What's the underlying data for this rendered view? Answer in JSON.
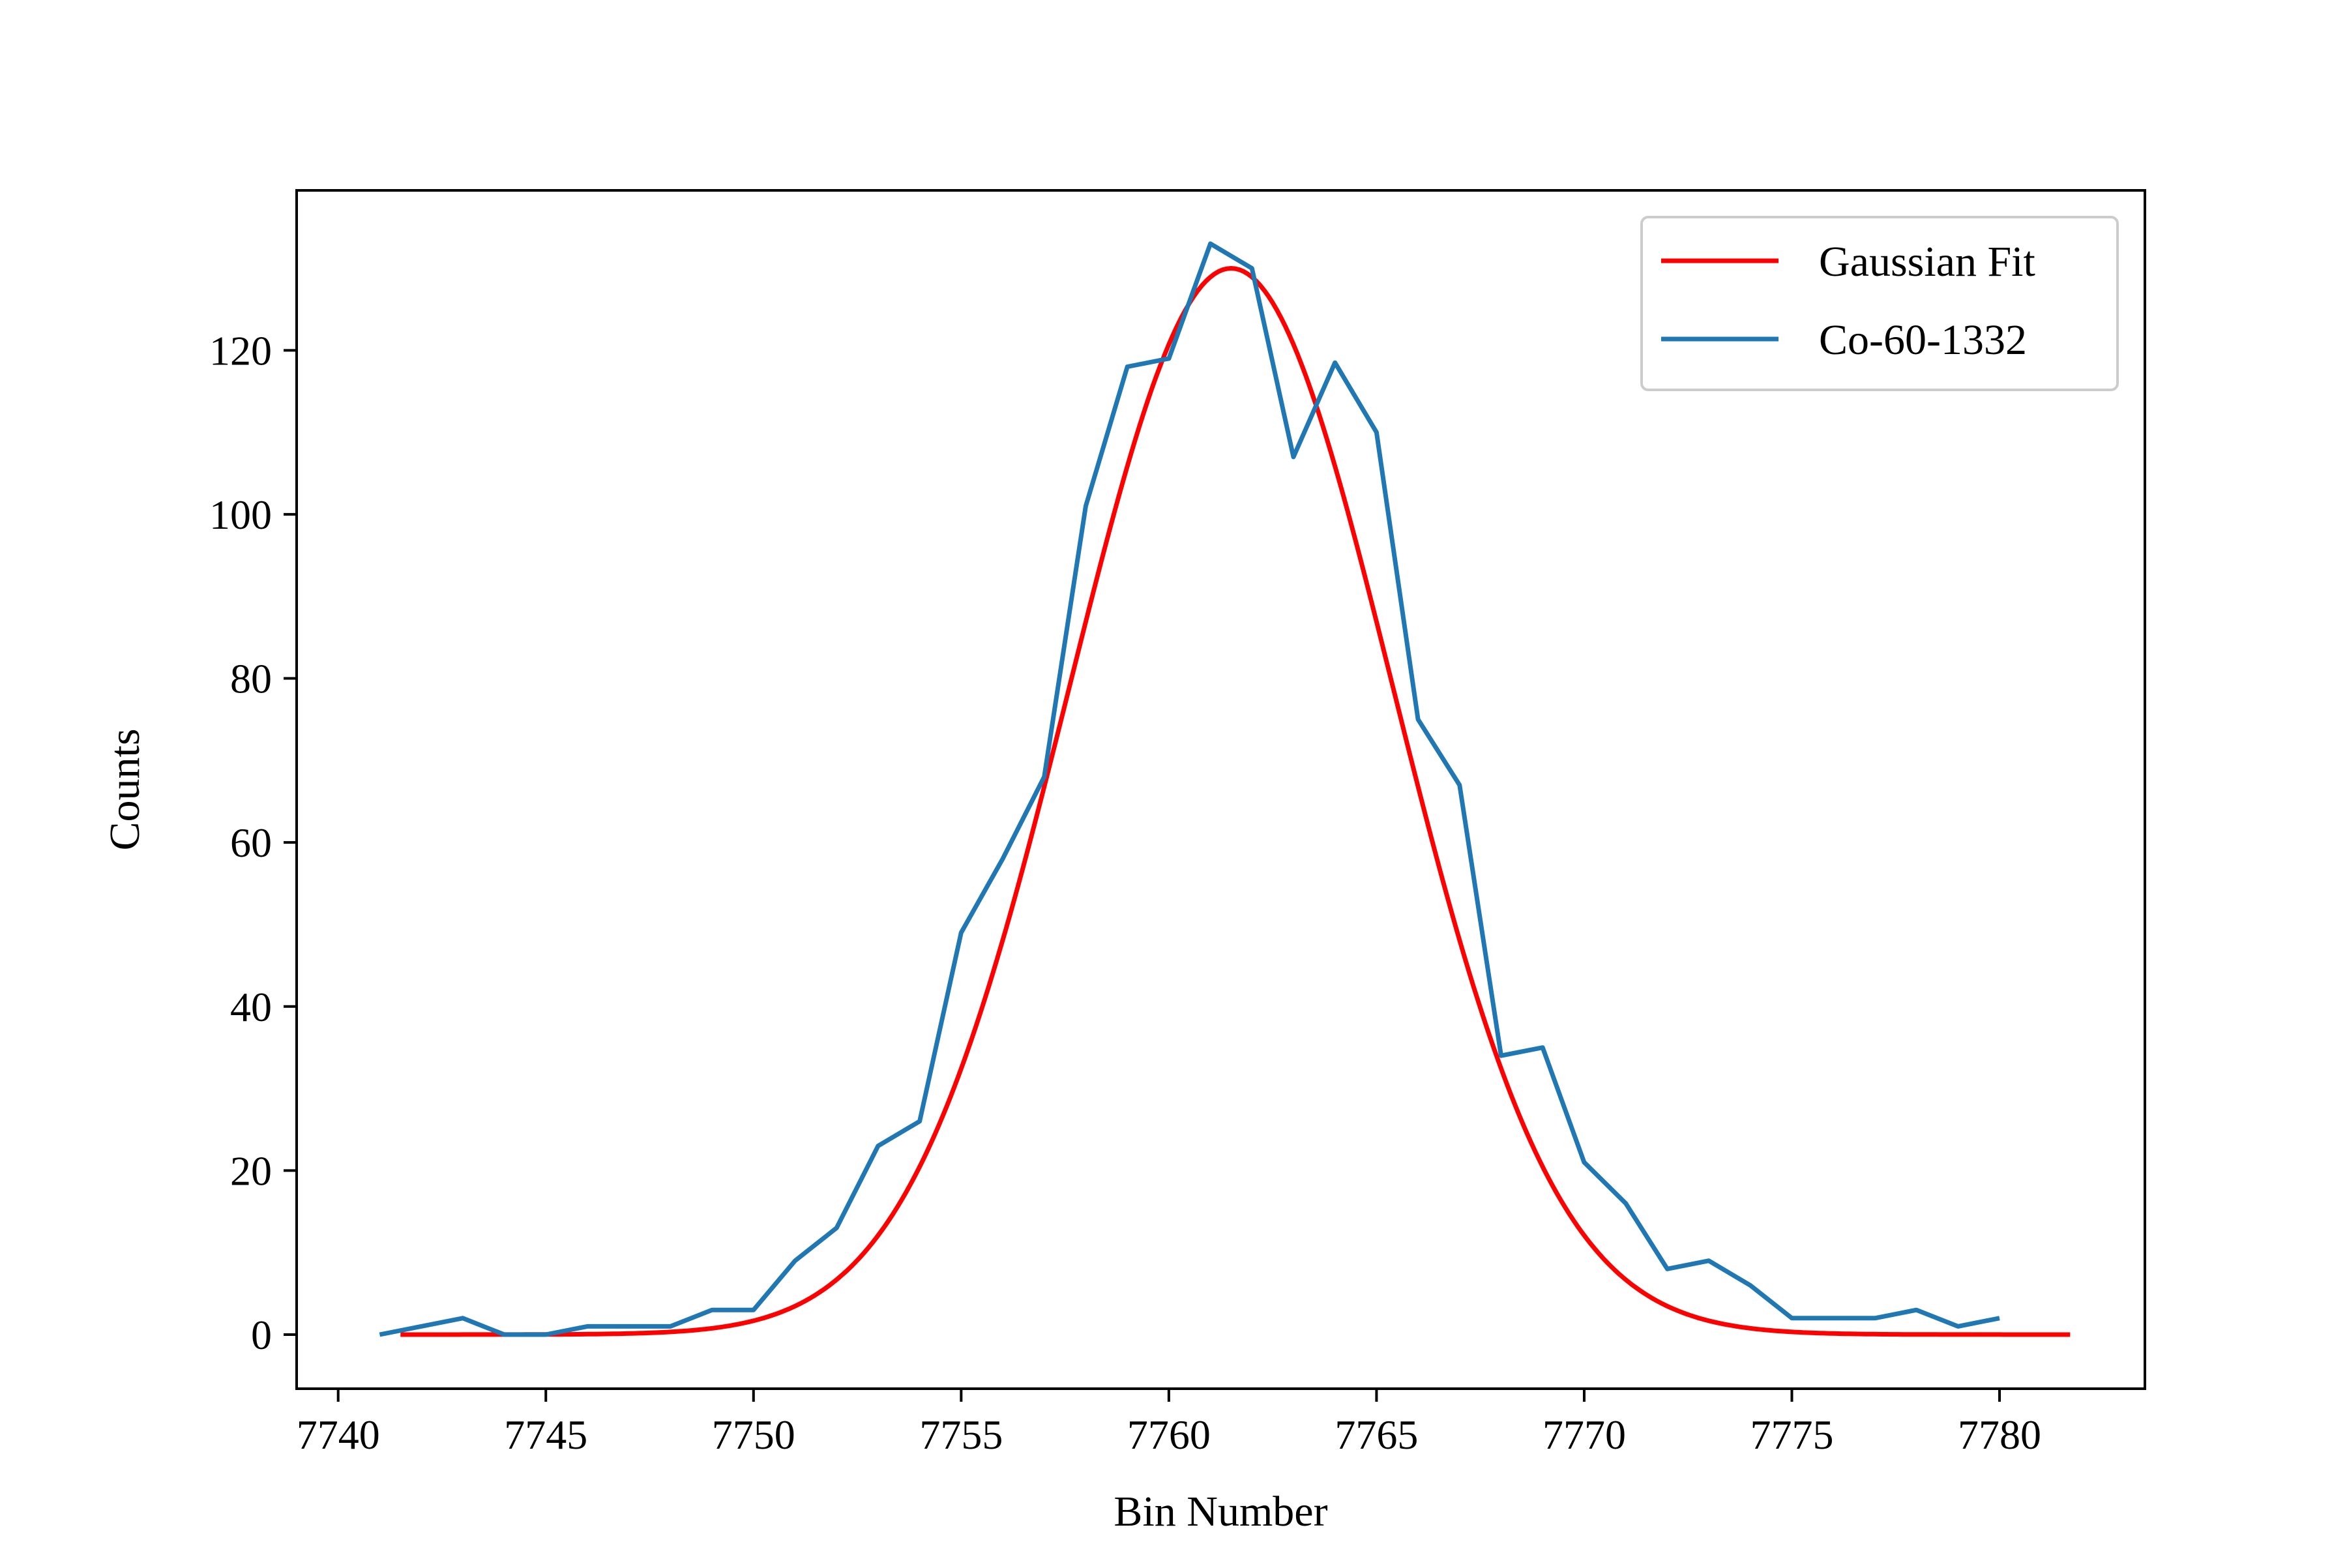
{
  "chart_data": {
    "type": "line",
    "title": "",
    "xlabel": "Bin Number",
    "ylabel": "Counts",
    "xlim": [
      7739.0,
      7783.5
    ],
    "ylim": [
      -6.6,
      139.5
    ],
    "x_ticks": [
      7740,
      7745,
      7750,
      7755,
      7760,
      7765,
      7770,
      7775,
      7780
    ],
    "y_ticks": [
      0,
      20,
      40,
      60,
      80,
      100,
      120
    ],
    "grid": false,
    "legend_position": "upper right",
    "legend": [
      "Gaussian Fit",
      "Co-60-1332"
    ],
    "series": [
      {
        "name": "Gaussian Fit",
        "kind": "gaussian",
        "color": "#ff0000",
        "amplitude": 130,
        "mean": 7761.5,
        "sigma": 3.9,
        "x_range": [
          7741.5,
          7781.7
        ]
      },
      {
        "name": "Co-60-1332",
        "color": "#1f77b4",
        "x": [
          7741,
          7742,
          7743,
          7744,
          7745,
          7746,
          7747,
          7748,
          7749,
          7750,
          7751,
          7752,
          7753,
          7754,
          7755,
          7756,
          7757,
          7758,
          7759,
          7760,
          7761,
          7762,
          7763,
          7764,
          7765,
          7766,
          7767,
          7768,
          7769,
          7770,
          7771,
          7772,
          7773,
          7774,
          7775,
          7776,
          7777,
          7778,
          7779,
          7780
        ],
        "y": [
          0,
          1,
          2,
          0,
          0,
          1,
          1,
          1,
          3,
          3,
          9,
          13,
          23,
          26,
          49,
          58,
          68,
          101,
          118,
          119,
          133,
          130,
          107,
          118.5,
          110,
          75,
          67,
          34,
          35,
          21,
          16,
          8,
          9,
          6,
          2,
          2,
          2,
          3,
          1,
          2
        ]
      }
    ]
  }
}
